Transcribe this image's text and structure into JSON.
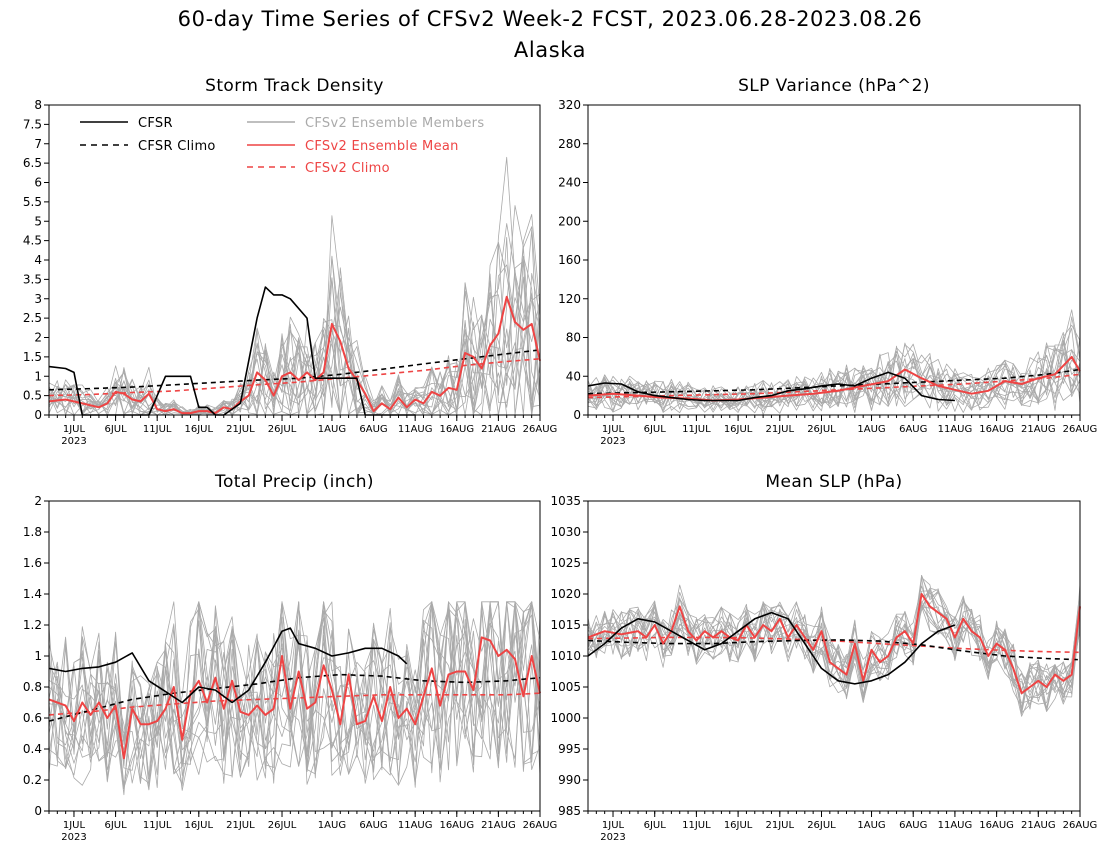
{
  "page": {
    "title": "60-day Time Series of CFSv2 Week-2 FCST, 2023.06.28-2023.08.26",
    "subtitle": "Alaska"
  },
  "legend": [
    {
      "label": "CFSR",
      "color": "#000000",
      "dash": false
    },
    {
      "label": "CFSR Climo",
      "color": "#000000",
      "dash": true
    },
    {
      "label": "CFSv2 Ensemble Members",
      "color": "#aaaaaa",
      "dash": false
    },
    {
      "label": "CFSv2 Ensemble Mean",
      "color": "#ee4444",
      "dash": false
    },
    {
      "label": "CFSv2 Climo",
      "color": "#ee4444",
      "dash": true
    }
  ],
  "x_ticks": [
    {
      "label": "1JUL",
      "day": 3
    },
    {
      "label": "6JUL",
      "day": 8
    },
    {
      "label": "11JUL",
      "day": 13
    },
    {
      "label": "16JUL",
      "day": 18
    },
    {
      "label": "21JUL",
      "day": 23
    },
    {
      "label": "26JUL",
      "day": 28
    },
    {
      "label": "1AUG",
      "day": 34
    },
    {
      "label": "6AUG",
      "day": 39
    },
    {
      "label": "11AUG",
      "day": 44
    },
    {
      "label": "16AUG",
      "day": 49
    },
    {
      "label": "21AUG",
      "day": 54
    },
    {
      "label": "26AUG",
      "day": 59
    }
  ],
  "x_year_label": "2023",
  "colors": {
    "cfsr": "#000000",
    "members": "#aaaaaa",
    "mean": "#ee4444",
    "axis": "#000000"
  },
  "chart_data": [
    {
      "type": "line",
      "title": "Storm Track Density",
      "ylim": [
        0,
        8
      ],
      "y_ticks": [
        "0",
        "0.5",
        "1",
        "1.5",
        "2",
        "2.5",
        "3",
        "3.5",
        "4",
        "4.5",
        "5",
        "5.5",
        "6",
        "6.5",
        "7",
        "7.5",
        "8"
      ],
      "x_range": [
        0,
        59
      ],
      "show_legend": true,
      "series": [
        {
          "name": "CFSR",
          "role": "cfsr",
          "x": [
            0,
            2,
            3,
            4,
            5,
            6,
            8,
            10,
            12,
            14,
            15,
            17,
            18,
            19,
            20,
            21,
            23,
            25,
            26,
            27,
            28,
            29,
            31,
            32,
            33,
            36,
            37,
            38,
            39,
            40,
            41,
            42,
            43,
            44
          ],
          "values": [
            1.25,
            1.2,
            1.1,
            0.0,
            0.0,
            0.0,
            0.0,
            0.0,
            0.0,
            1.0,
            1.0,
            1.0,
            0.2,
            0.2,
            0.0,
            0.0,
            0.3,
            2.5,
            3.3,
            3.1,
            3.1,
            3.0,
            2.5,
            0.95,
            0.95,
            0.95,
            0.95,
            0.0,
            0.0,
            0.0,
            0.0,
            0.0,
            0.0,
            0.0
          ]
        },
        {
          "name": "CFSR Climo",
          "role": "cfsr_climo",
          "x": [
            0,
            5,
            10,
            15,
            20,
            25,
            30,
            35,
            40,
            45,
            50,
            55,
            59
          ],
          "values": [
            0.65,
            0.68,
            0.72,
            0.78,
            0.84,
            0.9,
            0.95,
            1.05,
            1.18,
            1.32,
            1.45,
            1.58,
            1.68
          ]
        },
        {
          "name": "CFSv2 Ensemble Mean",
          "role": "mean",
          "x": [
            0,
            2,
            4,
            6,
            7,
            8,
            9,
            10,
            11,
            12,
            13,
            14,
            15,
            16,
            17,
            18,
            19,
            20,
            21,
            22,
            23,
            24,
            25,
            26,
            27,
            28,
            29,
            30,
            31,
            32,
            33,
            34,
            35,
            36,
            37,
            38,
            39,
            40,
            41,
            42,
            43,
            44,
            45,
            46,
            47,
            48,
            49,
            50,
            51,
            52,
            53,
            54,
            55,
            56,
            57,
            58,
            59
          ],
          "values": [
            0.35,
            0.4,
            0.3,
            0.2,
            0.3,
            0.6,
            0.55,
            0.4,
            0.35,
            0.55,
            0.15,
            0.1,
            0.15,
            0.05,
            0.05,
            0.1,
            0.1,
            0.05,
            0.2,
            0.15,
            0.35,
            0.5,
            1.1,
            0.9,
            0.5,
            1.0,
            1.1,
            0.9,
            1.1,
            0.9,
            1.1,
            2.35,
            1.9,
            1.2,
            0.9,
            0.55,
            0.1,
            0.3,
            0.15,
            0.45,
            0.2,
            0.4,
            0.3,
            0.6,
            0.5,
            0.7,
            0.65,
            1.6,
            1.5,
            1.2,
            1.8,
            2.1,
            3.05,
            2.4,
            2.2,
            2.35,
            1.4
          ]
        },
        {
          "name": "CFSv2 Climo",
          "role": "mean_climo",
          "x": [
            0,
            5,
            10,
            15,
            20,
            25,
            30,
            35,
            40,
            45,
            50,
            55,
            59
          ],
          "values": [
            0.5,
            0.53,
            0.58,
            0.62,
            0.7,
            0.78,
            0.85,
            0.95,
            1.05,
            1.15,
            1.28,
            1.38,
            1.45
          ]
        }
      ],
      "members": {
        "count": 16,
        "spread": 0.55,
        "scale": "ratio",
        "max": 7.1
      }
    },
    {
      "type": "line",
      "title": "SLP Variance (hPa^2)",
      "ylim": [
        0,
        320
      ],
      "y_ticks": [
        "0",
        "40",
        "80",
        "120",
        "160",
        "200",
        "240",
        "280",
        "320"
      ],
      "x_range": [
        0,
        59
      ],
      "show_legend": false,
      "series": [
        {
          "name": "CFSR",
          "role": "cfsr",
          "x": [
            0,
            2,
            4,
            6,
            8,
            10,
            12,
            14,
            16,
            18,
            20,
            22,
            24,
            26,
            28,
            30,
            32,
            34,
            36,
            38,
            40,
            42,
            44
          ],
          "values": [
            30,
            33,
            32,
            24,
            20,
            18,
            16,
            15,
            15,
            15,
            18,
            20,
            25,
            27,
            30,
            32,
            30,
            38,
            44,
            38,
            20,
            16,
            15
          ]
        },
        {
          "name": "CFSR Climo",
          "role": "cfsr_climo",
          "x": [
            0,
            5,
            10,
            15,
            20,
            25,
            30,
            35,
            40,
            45,
            50,
            55,
            59
          ],
          "values": [
            22,
            23,
            24,
            25,
            26,
            28,
            30,
            32,
            34,
            36,
            38,
            42,
            47
          ]
        },
        {
          "name": "CFSv2 Ensemble Mean",
          "role": "mean",
          "x": [
            0,
            3,
            6,
            9,
            12,
            15,
            18,
            21,
            24,
            27,
            30,
            33,
            36,
            38,
            40,
            42,
            44,
            46,
            48,
            50,
            52,
            54,
            56,
            58,
            59
          ],
          "values": [
            20,
            22,
            20,
            18,
            17,
            15,
            16,
            18,
            20,
            22,
            25,
            30,
            35,
            47,
            38,
            30,
            26,
            22,
            25,
            35,
            32,
            38,
            42,
            60,
            45
          ]
        },
        {
          "name": "CFSv2 Climo",
          "role": "mean_climo",
          "x": [
            0,
            5,
            10,
            15,
            20,
            25,
            30,
            35,
            40,
            45,
            50,
            55,
            59
          ],
          "values": [
            18,
            19,
            20,
            21,
            22,
            24,
            26,
            28,
            30,
            32,
            35,
            38,
            42
          ]
        }
      ],
      "members": {
        "count": 16,
        "spread": 0.35,
        "scale": "ratio",
        "max": 135
      }
    },
    {
      "type": "line",
      "title": "Total Precip (inch)",
      "ylim": [
        0,
        2
      ],
      "y_ticks": [
        "0",
        "0.2",
        "0.4",
        "0.6",
        "0.8",
        "1",
        "1.2",
        "1.4",
        "1.6",
        "1.8",
        "2"
      ],
      "x_range": [
        0,
        59
      ],
      "show_legend": false,
      "series": [
        {
          "name": "CFSR",
          "role": "cfsr",
          "x": [
            0,
            2,
            4,
            6,
            8,
            10,
            12,
            14,
            16,
            18,
            20,
            22,
            24,
            26,
            28,
            29,
            30,
            32,
            34,
            36,
            38,
            40,
            42,
            43
          ],
          "values": [
            0.92,
            0.9,
            0.92,
            0.93,
            0.96,
            1.02,
            0.84,
            0.77,
            0.7,
            0.8,
            0.78,
            0.7,
            0.78,
            0.96,
            1.16,
            1.18,
            1.08,
            1.05,
            1.0,
            1.02,
            1.05,
            1.05,
            1.0,
            0.95
          ]
        },
        {
          "name": "CFSR Climo",
          "role": "cfsr_climo",
          "x": [
            0,
            5,
            10,
            15,
            20,
            25,
            30,
            35,
            40,
            45,
            50,
            55,
            59
          ],
          "values": [
            0.58,
            0.65,
            0.72,
            0.76,
            0.79,
            0.82,
            0.86,
            0.88,
            0.87,
            0.84,
            0.83,
            0.84,
            0.86
          ]
        },
        {
          "name": "CFSv2 Ensemble Mean",
          "role": "mean",
          "x": [
            0,
            2,
            3,
            4,
            5,
            6,
            7,
            8,
            9,
            10,
            11,
            12,
            13,
            14,
            15,
            16,
            17,
            18,
            19,
            20,
            21,
            22,
            23,
            24,
            25,
            26,
            27,
            28,
            29,
            30,
            31,
            32,
            33,
            34,
            35,
            36,
            37,
            38,
            39,
            40,
            41,
            42,
            43,
            44,
            45,
            46,
            47,
            48,
            49,
            50,
            51,
            52,
            53,
            54,
            55,
            56,
            57,
            58,
            59
          ],
          "values": [
            0.72,
            0.68,
            0.58,
            0.7,
            0.62,
            0.7,
            0.6,
            0.68,
            0.34,
            0.66,
            0.56,
            0.56,
            0.58,
            0.66,
            0.8,
            0.46,
            0.76,
            0.84,
            0.7,
            0.86,
            0.66,
            0.84,
            0.64,
            0.62,
            0.68,
            0.62,
            0.66,
            1.0,
            0.66,
            0.9,
            0.66,
            0.7,
            0.94,
            0.78,
            0.56,
            0.88,
            0.56,
            0.58,
            0.74,
            0.58,
            0.8,
            0.6,
            0.66,
            0.56,
            0.74,
            0.92,
            0.68,
            0.88,
            0.9,
            0.9,
            0.78,
            1.12,
            1.1,
            1.0,
            1.04,
            0.98,
            0.74,
            1.0,
            0.76
          ]
        },
        {
          "name": "CFSv2 Climo",
          "role": "mean_climo",
          "x": [
            0,
            5,
            10,
            15,
            20,
            25,
            30,
            35,
            40,
            45,
            50,
            55,
            59
          ],
          "values": [
            0.62,
            0.64,
            0.67,
            0.69,
            0.71,
            0.72,
            0.73,
            0.74,
            0.75,
            0.75,
            0.75,
            0.75,
            0.76
          ]
        }
      ],
      "members": {
        "count": 16,
        "spread": 0.33,
        "scale": "ratio",
        "max": 1.35
      }
    },
    {
      "type": "line",
      "title": "Mean SLP (hPa)",
      "ylim": [
        985,
        1035
      ],
      "y_ticks": [
        "985",
        "990",
        "995",
        "1000",
        "1005",
        "1010",
        "1015",
        "1020",
        "1025",
        "1030",
        "1035"
      ],
      "x_range": [
        0,
        59
      ],
      "show_legend": false,
      "series": [
        {
          "name": "CFSR",
          "role": "cfsr",
          "x": [
            0,
            2,
            4,
            6,
            8,
            10,
            12,
            14,
            16,
            18,
            20,
            22,
            24,
            26,
            28,
            30,
            32,
            34,
            36,
            38,
            40,
            42,
            44
          ],
          "values": [
            1010,
            1012,
            1014.5,
            1016,
            1015.5,
            1014,
            1012.5,
            1011,
            1012,
            1014,
            1016,
            1017,
            1016,
            1012,
            1008,
            1006,
            1005.5,
            1006,
            1007,
            1009,
            1012,
            1014,
            1015
          ]
        },
        {
          "name": "CFSR Climo",
          "role": "cfsr_climo",
          "x": [
            0,
            5,
            10,
            15,
            20,
            25,
            30,
            35,
            40,
            45,
            50,
            55,
            59
          ],
          "values": [
            1012.5,
            1012.2,
            1012,
            1012,
            1012.3,
            1012.5,
            1012.6,
            1012.4,
            1011.8,
            1010.8,
            1010,
            1009.6,
            1009.4
          ]
        },
        {
          "name": "CFSv2 Ensemble Mean",
          "role": "mean",
          "x": [
            0,
            2,
            4,
            6,
            7,
            8,
            9,
            10,
            11,
            12,
            13,
            14,
            15,
            16,
            17,
            18,
            19,
            20,
            21,
            22,
            23,
            24,
            25,
            26,
            27,
            28,
            29,
            30,
            31,
            32,
            33,
            34,
            35,
            36,
            37,
            38,
            39,
            40,
            41,
            42,
            43,
            44,
            45,
            46,
            47,
            48,
            49,
            50,
            51,
            52,
            53,
            54,
            55,
            56,
            57,
            58,
            59
          ],
          "values": [
            1013,
            1014,
            1013.5,
            1014,
            1013,
            1015,
            1012,
            1014,
            1018,
            1014,
            1012.5,
            1014,
            1013,
            1014,
            1013,
            1012.5,
            1015,
            1013,
            1015,
            1014,
            1016,
            1013,
            1015,
            1013,
            1011,
            1014,
            1009,
            1008,
            1007,
            1012,
            1006,
            1011,
            1009,
            1010,
            1013,
            1014,
            1012,
            1020,
            1018,
            1017,
            1016,
            1013,
            1016,
            1014,
            1013,
            1010,
            1012,
            1011,
            1008,
            1004,
            1005,
            1006,
            1005,
            1007,
            1006,
            1007,
            1018
          ]
        },
        {
          "name": "CFSv2 Climo",
          "role": "mean_climo",
          "x": [
            0,
            5,
            10,
            15,
            20,
            25,
            30,
            35,
            40,
            45,
            50,
            55,
            59
          ],
          "values": [
            1012.8,
            1012.9,
            1013,
            1013,
            1012.9,
            1012.7,
            1012.4,
            1012,
            1011.6,
            1011.2,
            1010.9,
            1010.7,
            1010.6
          ]
        }
      ],
      "members": {
        "count": 16,
        "spread": 4,
        "scale": "add",
        "max": 1023
      }
    }
  ]
}
